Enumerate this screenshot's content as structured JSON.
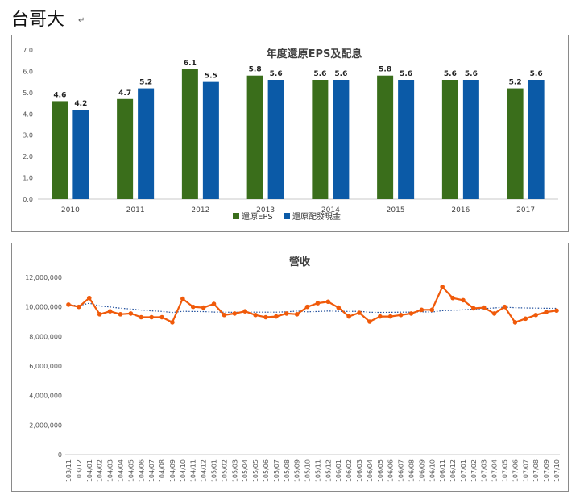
{
  "page": {
    "title": "台哥大",
    "mark": "↵"
  },
  "colors": {
    "eps": "#3a6e1b",
    "dividend": "#0b5aa7",
    "revenue": "#f05a0a",
    "trend": "#1f4e9c"
  },
  "chart_data": [
    {
      "type": "bar",
      "title": "年度還原EPS及配息",
      "categories": [
        "2010",
        "2011",
        "2012",
        "2013",
        "2014",
        "2015",
        "2016",
        "2017"
      ],
      "series": [
        {
          "name": "還原EPS",
          "values": [
            4.6,
            4.7,
            6.1,
            5.8,
            5.6,
            5.8,
            5.6,
            5.2
          ]
        },
        {
          "name": "還原配發現金",
          "values": [
            4.2,
            5.2,
            5.5,
            5.6,
            5.6,
            5.6,
            5.6,
            5.6
          ]
        }
      ],
      "ylim": [
        0,
        7
      ],
      "yticks": [
        "0.0",
        "1.0",
        "2.0",
        "3.0",
        "4.0",
        "5.0",
        "6.0",
        "7.0"
      ],
      "legend": "bottom",
      "grid": false
    },
    {
      "type": "line",
      "title": "營收",
      "x": [
        "103/11",
        "103/12",
        "104/01",
        "104/02",
        "104/03",
        "104/04",
        "104/05",
        "104/06",
        "104/07",
        "104/08",
        "104/09",
        "104/10",
        "104/11",
        "104/12",
        "105/01",
        "105/02",
        "105/03",
        "105/04",
        "105/05",
        "105/06",
        "105/07",
        "105/08",
        "105/09",
        "105/10",
        "105/11",
        "105/12",
        "106/01",
        "106/02",
        "106/03",
        "106/04",
        "106/05",
        "106/06",
        "106/07",
        "106/08",
        "106/09",
        "106/10",
        "106/11",
        "106/12",
        "107/01",
        "107/02",
        "107/03",
        "107/04",
        "107/05",
        "107/06",
        "107/07",
        "107/08",
        "107/09",
        "107/10"
      ],
      "series": [
        {
          "values": [
            10150000,
            10000000,
            10600000,
            9500000,
            9700000,
            9500000,
            9550000,
            9300000,
            9300000,
            9300000,
            8950000,
            10550000,
            10000000,
            9950000,
            10200000,
            9450000,
            9550000,
            9700000,
            9450000,
            9300000,
            9350000,
            9550000,
            9500000,
            10000000,
            10250000,
            10350000,
            9950000,
            9350000,
            9600000,
            9000000,
            9350000,
            9350000,
            9450000,
            9550000,
            9800000,
            9800000,
            11350000,
            10600000,
            10450000,
            9900000,
            9950000,
            9550000,
            10000000,
            8950000,
            9200000,
            9450000,
            9650000,
            9750000
          ]
        }
      ],
      "trendline": "moving average (dotted)",
      "ylim": [
        0,
        12000000
      ],
      "yticks": [
        "0",
        "2,000,000",
        "4,000,000",
        "6,000,000",
        "8,000,000",
        "10,000,000",
        "12,000,000"
      ],
      "grid": false
    }
  ]
}
